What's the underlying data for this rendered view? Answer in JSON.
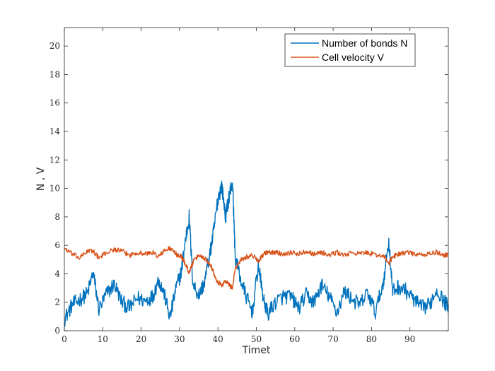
{
  "chart_data": {
    "type": "line",
    "title": "",
    "xlabel": "Timet",
    "ylabel": "N , V",
    "xlim": [
      0,
      100
    ],
    "ylim": [
      0,
      21.3
    ],
    "grid": false,
    "legend_position": "top-right",
    "x_ticks": [
      0,
      10,
      20,
      30,
      40,
      50,
      60,
      70,
      80,
      90
    ],
    "x_tick_labels": [
      "0",
      "10",
      "20",
      "30",
      "40",
      "50",
      "60",
      "70",
      "80",
      "90"
    ],
    "y_ticks": [
      0,
      2,
      4,
      6,
      8,
      10,
      12,
      14,
      16,
      18,
      20
    ],
    "y_tick_labels": [
      "0",
      "2",
      "4",
      "6",
      "8",
      "10",
      "12",
      "14",
      "16",
      "18",
      "20"
    ],
    "x": [
      0,
      2,
      4,
      6,
      7.5,
      9,
      11,
      13,
      15,
      17,
      19,
      21,
      23,
      24.5,
      26,
      27.5,
      29,
      30.5,
      31.5,
      32.5,
      33.5,
      35,
      36.5,
      38,
      39,
      40,
      41,
      42,
      43,
      43.8,
      44.5,
      46,
      47.5,
      49,
      50.5,
      52,
      53,
      55,
      57,
      59,
      61,
      63,
      65,
      67,
      69,
      71,
      73,
      75,
      77,
      79,
      81,
      83,
      84.5,
      85.5,
      87,
      89,
      91,
      93,
      95,
      97,
      99,
      100
    ],
    "series": [
      {
        "name": "Number of bonds N",
        "color": "#0072bd",
        "values": [
          0.8,
          1.8,
          2.2,
          2.6,
          4.1,
          1.5,
          2.6,
          3.3,
          2.0,
          1.6,
          2.3,
          2.1,
          2.4,
          3.6,
          2.6,
          0.9,
          2.9,
          4.2,
          6.3,
          8.0,
          3.3,
          2.5,
          3.4,
          5.5,
          7.2,
          9.3,
          10.2,
          8.0,
          9.6,
          10.5,
          5.2,
          3.5,
          2.3,
          1.3,
          4.6,
          2.0,
          1.2,
          2.0,
          2.4,
          2.4,
          1.6,
          2.5,
          2.0,
          3.2,
          2.4,
          1.3,
          2.8,
          2.2,
          1.8,
          2.7,
          1.3,
          3.3,
          6.3,
          2.7,
          3.1,
          2.8,
          2.2,
          1.6,
          1.8,
          2.9,
          2.0,
          1.8
        ]
      },
      {
        "name": "Cell velocity V",
        "color": "#d95319",
        "values": [
          5.8,
          5.4,
          5.1,
          5.6,
          5.6,
          5.1,
          5.5,
          5.7,
          5.6,
          5.3,
          5.5,
          5.4,
          5.5,
          5.2,
          5.6,
          5.8,
          5.4,
          5.2,
          4.7,
          4.1,
          4.8,
          5.3,
          5.1,
          4.7,
          4.0,
          3.4,
          3.2,
          3.5,
          3.2,
          3.0,
          4.4,
          5.0,
          5.2,
          5.3,
          4.9,
          5.4,
          5.5,
          5.5,
          5.4,
          5.5,
          5.4,
          5.6,
          5.4,
          5.5,
          5.3,
          5.5,
          5.3,
          5.5,
          5.4,
          5.5,
          5.3,
          5.3,
          4.7,
          5.2,
          5.4,
          5.5,
          5.4,
          5.3,
          5.4,
          5.5,
          5.3,
          5.4
        ]
      }
    ]
  }
}
